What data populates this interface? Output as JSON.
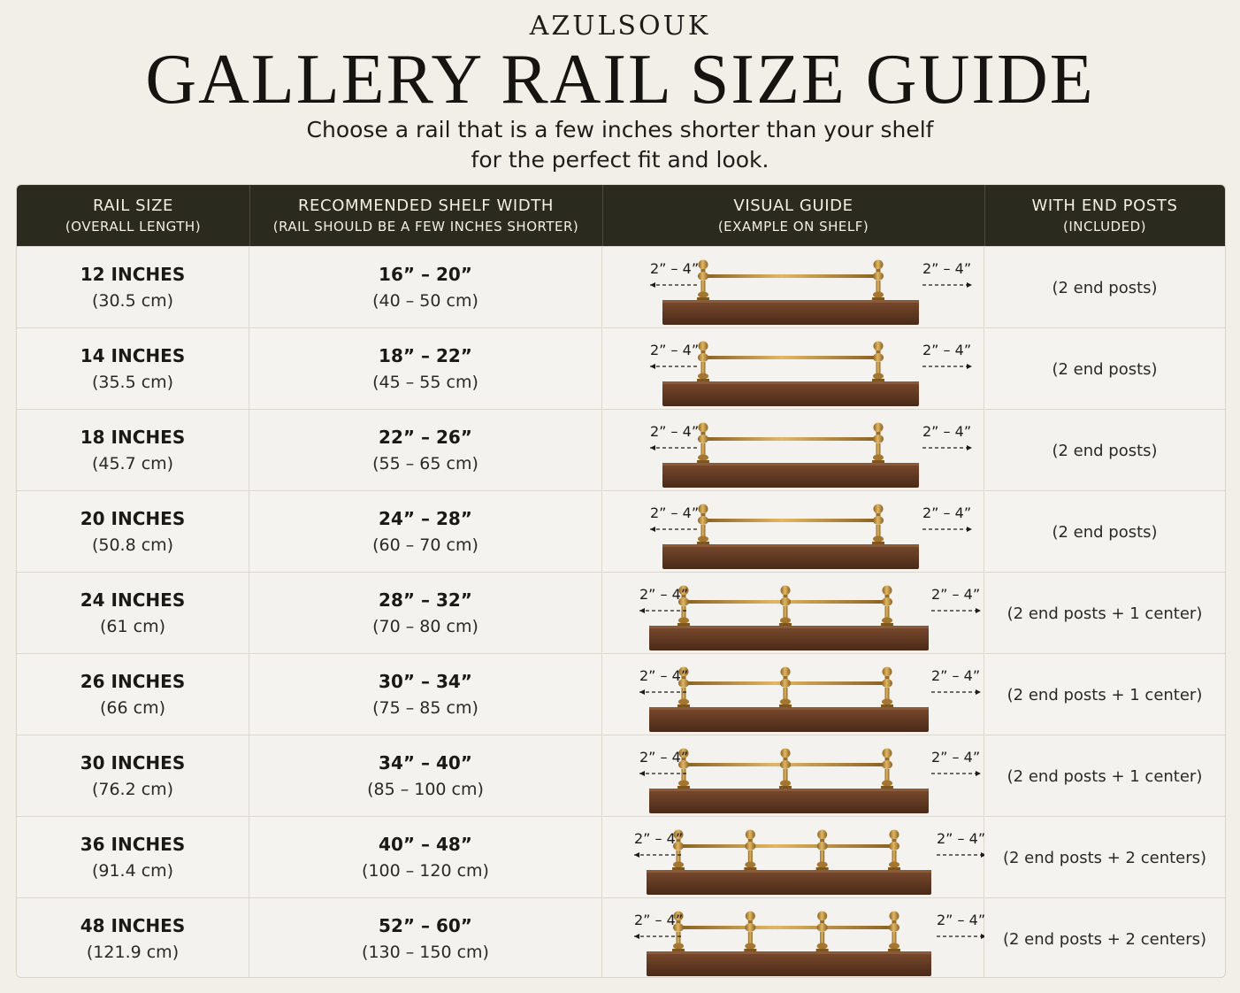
{
  "header": {
    "brand": "AZULSOUK",
    "title": "GALLERY RAIL SIZE GUIDE",
    "subtitle_line1": "Choose a rail that is a few inches shorter than your shelf",
    "subtitle_line2": "for the perfect fit and look."
  },
  "table": {
    "columns": [
      {
        "line1": "RAIL SIZE",
        "line2": "(OVERALL LENGTH)"
      },
      {
        "line1": "RECOMMENDED SHELF WIDTH",
        "line2": "(RAIL SHOULD BE A FEW INCHES SHORTER)"
      },
      {
        "line1": "VISUAL GUIDE",
        "line2": "(EXAMPLE ON SHELF)"
      },
      {
        "line1": "WITH END POSTS",
        "line2": "(INCLUDED)"
      }
    ],
    "rows": [
      {
        "rail": "12 INCHES",
        "rail_cm": "(30.5 cm)",
        "shelf": "16” – 20”",
        "shelf_cm": "(40 – 50 cm)",
        "gap_left": "2” – 4”",
        "gap_right": "2” – 4”",
        "center_posts": 0,
        "posts": "(2 end posts)"
      },
      {
        "rail": "14 INCHES",
        "rail_cm": "(35.5 cm)",
        "shelf": "18” – 22”",
        "shelf_cm": "(45 – 55 cm)",
        "gap_left": "2” – 4”",
        "gap_right": "2” – 4”",
        "center_posts": 0,
        "posts": "(2 end posts)"
      },
      {
        "rail": "18 INCHES",
        "rail_cm": "(45.7 cm)",
        "shelf": "22” – 26”",
        "shelf_cm": "(55 – 65 cm)",
        "gap_left": "2” – 4”",
        "gap_right": "2” – 4”",
        "center_posts": 0,
        "posts": "(2 end posts)"
      },
      {
        "rail": "20 INCHES",
        "rail_cm": "(50.8 cm)",
        "shelf": "24” – 28”",
        "shelf_cm": "(60 – 70 cm)",
        "gap_left": "2” – 4”",
        "gap_right": "2” – 4”",
        "center_posts": 0,
        "posts": "(2 end posts)"
      },
      {
        "rail": "24 INCHES",
        "rail_cm": "(61 cm)",
        "shelf": "28” – 32”",
        "shelf_cm": "(70 – 80 cm)",
        "gap_left": "2” – 4”",
        "gap_right": "2” – 4”",
        "center_posts": 1,
        "posts": "(2 end posts + 1 center)"
      },
      {
        "rail": "26 INCHES",
        "rail_cm": "(66 cm)",
        "shelf": "30” – 34”",
        "shelf_cm": "(75 – 85 cm)",
        "gap_left": "2” – 4”",
        "gap_right": "2” – 4”",
        "center_posts": 1,
        "posts": "(2 end posts + 1 center)"
      },
      {
        "rail": "30 INCHES",
        "rail_cm": "(76.2 cm)",
        "shelf": "34” – 40”",
        "shelf_cm": "(85 – 100 cm)",
        "gap_left": "2” – 4”",
        "gap_right": "2” – 4”",
        "center_posts": 1,
        "posts": "(2 end posts + 1 center)"
      },
      {
        "rail": "36 INCHES",
        "rail_cm": "(91.4 cm)",
        "shelf": "40” – 48”",
        "shelf_cm": "(100 – 120 cm)",
        "gap_left": "2” – 4”",
        "gap_right": "2” – 4”",
        "center_posts": 2,
        "posts": "(2 end posts + 2 centers)"
      },
      {
        "rail": "48 INCHES",
        "rail_cm": "(121.9 cm)",
        "shelf": "52” – 60”",
        "shelf_cm": "(130 – 150 cm)",
        "gap_left": "2” – 4”",
        "gap_right": "2” – 4”",
        "center_posts": 2,
        "posts": "(2 end posts + 2 centers)"
      }
    ]
  },
  "colors": {
    "background": "#f2efe9",
    "header_bg": "#2b2a1e",
    "brass": "#b88a3c",
    "wood": "#5a3522"
  }
}
